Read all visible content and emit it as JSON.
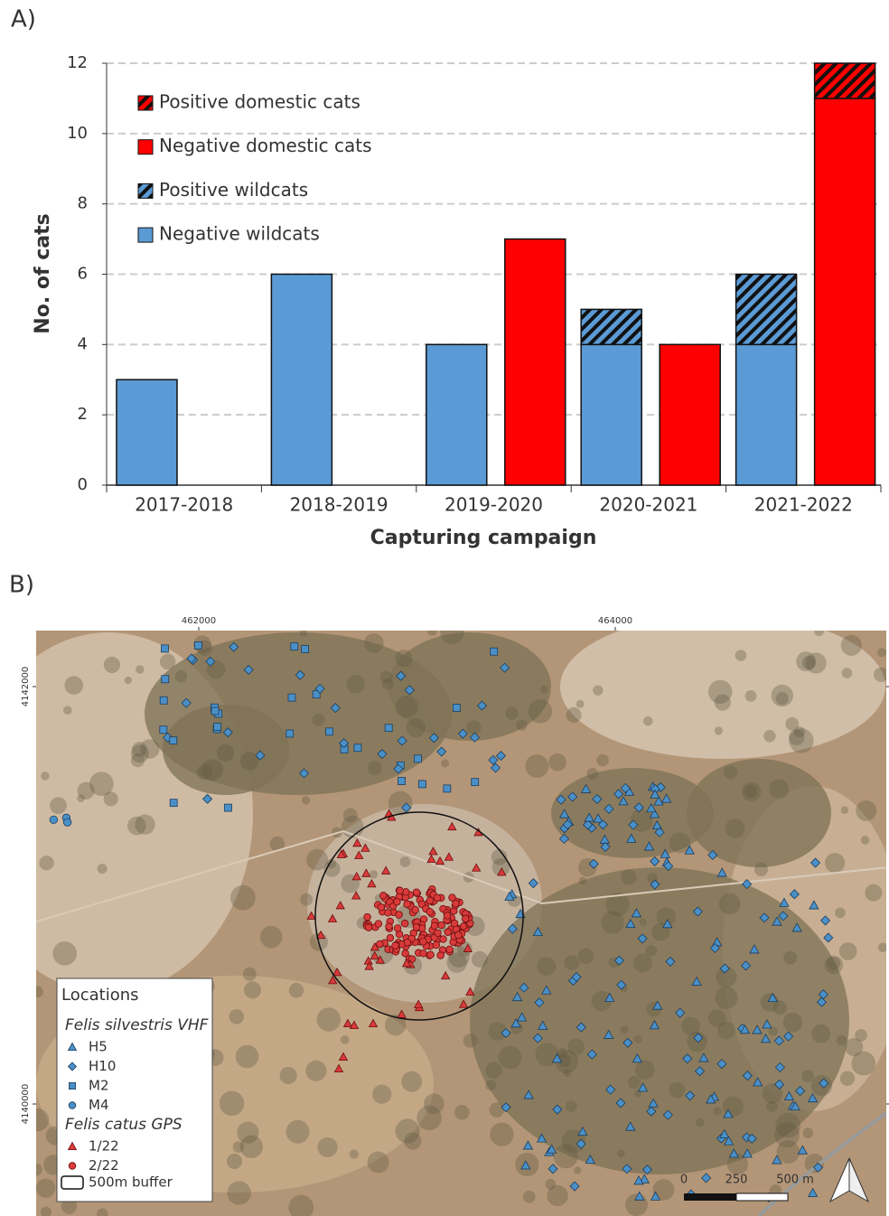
{
  "panel_a_label": "A)",
  "chart_data": {
    "type": "bar",
    "ylabel": "No. of cats",
    "xlabel": "Capturing campaign",
    "categories": [
      "2017-2018",
      "2018-2019",
      "2019-2020",
      "2020-2021",
      "2021-2022"
    ],
    "series": [
      {
        "name": "Negative wildcats",
        "color": "#5b9bd5",
        "group": 0,
        "hatch": false,
        "values": [
          3,
          6,
          4,
          4,
          4
        ]
      },
      {
        "name": "Positive wildcats",
        "color": "#5b9bd5",
        "group": 0,
        "hatch": true,
        "values": [
          0,
          0,
          0,
          1,
          2
        ]
      },
      {
        "name": "Negative domestic cats",
        "color": "#ff0000",
        "group": 1,
        "hatch": false,
        "values": [
          0,
          0,
          7,
          4,
          11
        ]
      },
      {
        "name": "Positive domestic cats",
        "color": "#ff0000",
        "group": 1,
        "hatch": true,
        "values": [
          0,
          0,
          0,
          0,
          1
        ]
      }
    ],
    "ylim": [
      0,
      12
    ],
    "yticks": [
      0,
      2,
      4,
      6,
      8,
      10,
      12
    ],
    "grid": true,
    "legend": "upper left"
  },
  "panel_b_label": "B)",
  "map": {
    "x_labels": [
      462000,
      464000
    ],
    "y_labels": [
      4142000,
      4140000
    ],
    "legend": {
      "title": "Locations",
      "groups": [
        {
          "title": "Felis silvestris VHF",
          "items": [
            "H5",
            "H10",
            "M2",
            "M4"
          ]
        },
        {
          "title": "Felis catus GPS",
          "items": [
            "1/22",
            "2/22"
          ]
        }
      ],
      "buffer": "500m buffer"
    },
    "scale": [
      0,
      250,
      "500 m"
    ]
  }
}
